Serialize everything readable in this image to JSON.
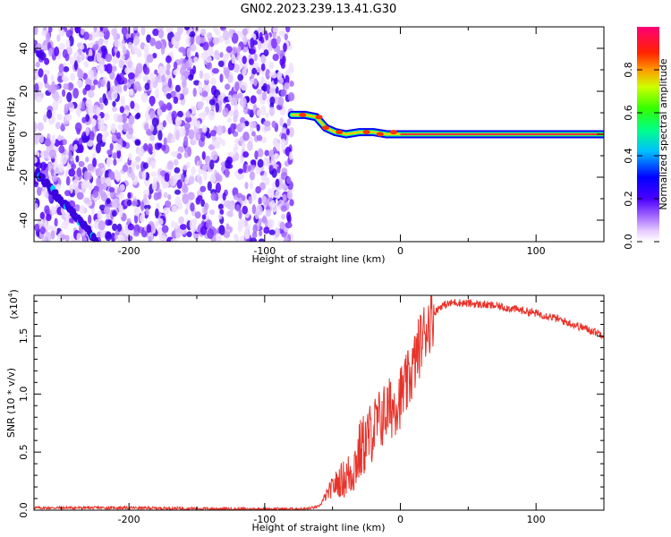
{
  "title": "GN02.2023.239.13.41.G30",
  "chart_data": [
    {
      "type": "heatmap",
      "xlabel": "Height of straight line (km)",
      "ylabel": "Frequency (Hz)",
      "xlim": [
        -270,
        150
      ],
      "ylim": [
        -50,
        50
      ],
      "xticks": [
        -200,
        -100,
        0,
        100
      ],
      "yticks": [
        -40,
        -20,
        0,
        20,
        40
      ],
      "colorbar": {
        "label": "Normalized spectral amplitude",
        "range": [
          0,
          1
        ],
        "ticks": [
          0.0,
          0.2,
          0.4,
          0.6,
          0.8
        ],
        "colormap": [
          "#ffffff",
          "#d9b3ff",
          "#8a2be2",
          "#3a00ff",
          "#0000ff",
          "#00bfff",
          "#00ff88",
          "#33ff00",
          "#ffff00",
          "#ff8000",
          "#ff0000",
          "#ff0066"
        ]
      },
      "features": {
        "noise_region_x": [
          -270,
          -80
        ],
        "signal_track": [
          {
            "x": -80,
            "y": 9
          },
          {
            "x": -70,
            "y": 9
          },
          {
            "x": -62,
            "y": 8
          },
          {
            "x": -55,
            "y": 3
          },
          {
            "x": -48,
            "y": 1
          },
          {
            "x": -40,
            "y": 0
          },
          {
            "x": -30,
            "y": 1
          },
          {
            "x": -20,
            "y": 1
          },
          {
            "x": -10,
            "y": 0
          },
          {
            "x": 0,
            "y": 0
          },
          {
            "x": 50,
            "y": 0
          },
          {
            "x": 100,
            "y": 0
          },
          {
            "x": 150,
            "y": 0
          }
        ]
      }
    },
    {
      "type": "line",
      "xlabel": "Height of straight line (km)",
      "ylabel": "SNR (10 * v/v)",
      "yscale_label": "(x10^4)",
      "xlim": [
        -270,
        150
      ],
      "ylim": [
        0,
        1.85
      ],
      "xticks": [
        -200,
        -100,
        0,
        100
      ],
      "yticks": [
        "0.0",
        "0.5",
        "1.0",
        "1.5"
      ],
      "series": [
        {
          "color": "#e8332b",
          "points": [
            {
              "x": -270,
              "y": 0.02
            },
            {
              "x": -200,
              "y": 0.02
            },
            {
              "x": -120,
              "y": 0.01
            },
            {
              "x": -70,
              "y": 0.01
            },
            {
              "x": -60,
              "y": 0.03
            },
            {
              "x": -55,
              "y": 0.12
            },
            {
              "x": -50,
              "y": 0.2
            },
            {
              "x": -45,
              "y": 0.25
            },
            {
              "x": -40,
              "y": 0.28
            },
            {
              "x": -35,
              "y": 0.35
            },
            {
              "x": -30,
              "y": 0.5
            },
            {
              "x": -25,
              "y": 0.6
            },
            {
              "x": -20,
              "y": 0.7
            },
            {
              "x": -15,
              "y": 0.78
            },
            {
              "x": -10,
              "y": 0.85
            },
            {
              "x": -5,
              "y": 0.9
            },
            {
              "x": 0,
              "y": 0.98
            },
            {
              "x": 5,
              "y": 1.08
            },
            {
              "x": 10,
              "y": 1.25
            },
            {
              "x": 15,
              "y": 1.45
            },
            {
              "x": 20,
              "y": 1.6
            },
            {
              "x": 25,
              "y": 1.7
            },
            {
              "x": 30,
              "y": 1.76
            },
            {
              "x": 40,
              "y": 1.79
            },
            {
              "x": 50,
              "y": 1.78
            },
            {
              "x": 70,
              "y": 1.76
            },
            {
              "x": 90,
              "y": 1.72
            },
            {
              "x": 110,
              "y": 1.67
            },
            {
              "x": 130,
              "y": 1.59
            },
            {
              "x": 150,
              "y": 1.51
            }
          ]
        }
      ]
    }
  ]
}
